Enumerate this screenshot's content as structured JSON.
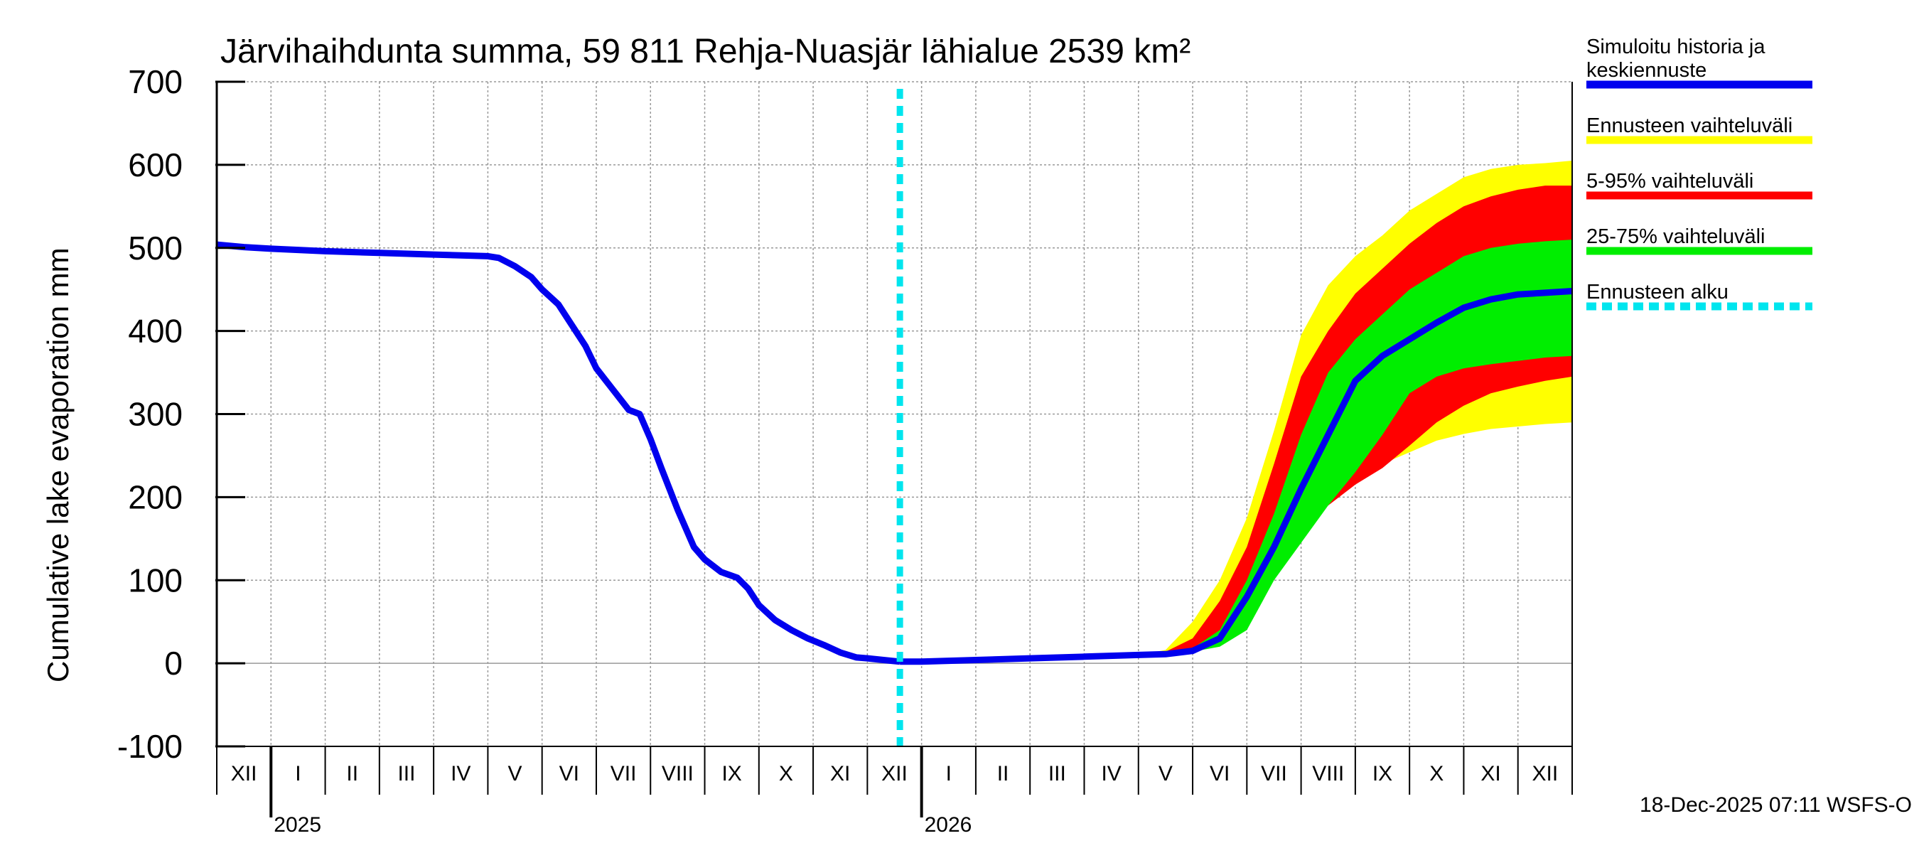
{
  "chart_data": {
    "type": "area",
    "title": "Järvihaihdunta summa, 59 811 Rehja-Nuasjär lähialue 2539 km²",
    "ylabel": "Cumulative lake evaporation   mm",
    "xlabel": "",
    "ylim": [
      -100,
      700
    ],
    "yticks": [
      -100,
      0,
      100,
      200,
      300,
      400,
      500,
      600,
      700
    ],
    "x_unit": "month index (0 = start of Dec 2024, 25 = end of Dec 2026)",
    "xlim": [
      0,
      25
    ],
    "months": [
      "XII",
      "I",
      "II",
      "III",
      "IV",
      "V",
      "VI",
      "VII",
      "VIII",
      "IX",
      "X",
      "XI",
      "XII",
      "I",
      "II",
      "III",
      "IV",
      "V",
      "VI",
      "VII",
      "VIII",
      "IX",
      "X",
      "XI",
      "XII"
    ],
    "years": [
      {
        "label": "2025",
        "at_month": 1
      },
      {
        "label": "2026",
        "at_month": 13
      }
    ],
    "forecast_start": 12.6,
    "history": {
      "name": "Simuloitu historia ja keskiennuste",
      "x": [
        0,
        0.5,
        1,
        2,
        3,
        4,
        4.5,
        5,
        5.2,
        5.5,
        5.8,
        6,
        6.3,
        6.5,
        6.8,
        7,
        7.3,
        7.6,
        7.8,
        8,
        8.2,
        8.5,
        8.8,
        9,
        9.3,
        9.6,
        9.8,
        10,
        10.3,
        10.6,
        10.9,
        11.2,
        11.5,
        11.8,
        12,
        12.3,
        12.6
      ],
      "y": [
        504,
        501,
        499,
        496,
        494,
        492,
        491,
        490,
        488,
        478,
        465,
        450,
        432,
        412,
        382,
        355,
        330,
        305,
        300,
        270,
        235,
        185,
        140,
        125,
        110,
        103,
        90,
        70,
        52,
        40,
        30,
        22,
        13,
        7,
        6,
        4,
        2
      ]
    },
    "forecast": {
      "x": [
        12.6,
        13,
        14,
        15,
        16,
        17,
        17.5,
        18,
        18.5,
        19,
        19.5,
        20,
        20.5,
        21,
        21.5,
        22,
        22.5,
        23,
        23.5,
        24,
        24.5,
        25
      ],
      "p0": [
        2,
        2,
        4,
        6,
        8,
        10,
        14,
        20,
        45,
        95,
        145,
        185,
        210,
        228,
        240,
        254,
        268,
        276,
        282,
        285,
        288,
        290
      ],
      "p5": [
        2,
        2,
        4,
        6,
        8,
        10,
        12,
        16,
        28,
        60,
        120,
        160,
        190,
        215,
        235,
        262,
        290,
        310,
        325,
        333,
        340,
        345
      ],
      "p25": [
        2,
        2,
        4,
        6,
        8,
        10,
        11,
        14,
        20,
        40,
        100,
        145,
        190,
        230,
        275,
        325,
        345,
        355,
        360,
        364,
        368,
        370
      ],
      "p50": [
        2,
        2,
        4,
        6,
        8,
        10,
        11,
        15,
        30,
        80,
        140,
        210,
        275,
        340,
        370,
        390,
        410,
        428,
        438,
        444,
        446,
        448
      ],
      "p75": [
        2,
        2,
        4,
        6,
        8,
        10,
        12,
        18,
        40,
        100,
        180,
        275,
        350,
        390,
        420,
        450,
        470,
        490,
        500,
        505,
        508,
        510
      ],
      "p95": [
        2,
        2,
        4,
        6,
        8,
        10,
        14,
        30,
        75,
        140,
        240,
        345,
        400,
        445,
        475,
        505,
        530,
        550,
        562,
        570,
        575,
        575
      ],
      "p100": [
        2,
        2,
        4,
        6,
        8,
        10,
        16,
        50,
        100,
        175,
        280,
        395,
        455,
        490,
        515,
        545,
        565,
        585,
        595,
        600,
        602,
        605
      ]
    },
    "legend": [
      {
        "label_lines": [
          "Simuloitu historia ja",
          "keskiennuste"
        ],
        "color": "#0000ee",
        "style": "solid"
      },
      {
        "label_lines": [
          "Ennusteen vaihteluväli"
        ],
        "color": "#ffff00",
        "style": "solid"
      },
      {
        "label_lines": [
          "5-95% vaihteluväli"
        ],
        "color": "#ff0000",
        "style": "solid"
      },
      {
        "label_lines": [
          "25-75% vaihteluväli"
        ],
        "color": "#00ee00",
        "style": "solid"
      },
      {
        "label_lines": [
          "Ennusteen alku"
        ],
        "color": "#00e5ee",
        "style": "dashed"
      }
    ],
    "colors": {
      "history": "#0000ee",
      "band_outer": "#ffff00",
      "band_90": "#ff0000",
      "band_50": "#00ee00",
      "forecast_start": "#00e5ee",
      "grid": "#999999"
    },
    "timestamp": "18-Dec-2025 07:11 WSFS-O"
  }
}
